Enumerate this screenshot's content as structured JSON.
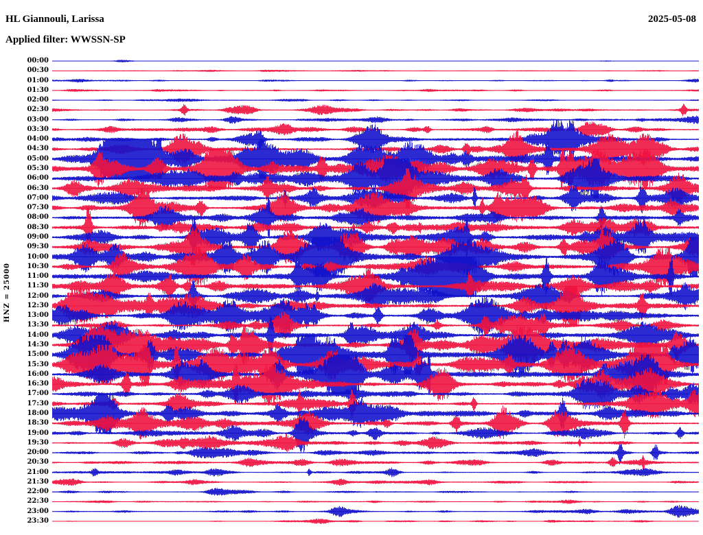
{
  "header": {
    "station": "HL Giannouli, Larissa",
    "date": "2025-05-08",
    "filter": "Applied filter: WWSSN-SP"
  },
  "axis": {
    "scale_label": "HNZ = 25000"
  },
  "chart_data": {
    "type": "line",
    "subtype": "helicorder-seismogram",
    "title": "HL Giannouli, Larissa",
    "date": "2025-05-08",
    "filter": "WWSSN-SP",
    "channel": "HNZ",
    "gain_scale": 25000,
    "ylabel": "HNZ = 25000",
    "minutes_per_row": 30,
    "rows_total": 48,
    "x_axis": "time within each 30-minute line (00 to 30 min)",
    "legend": "none",
    "grid": "off",
    "colors": {
      "blue": "#1212cc",
      "red": "#f01440"
    },
    "rows": [
      {
        "t": "00:00",
        "color": "blue",
        "activity": 0.03
      },
      {
        "t": "00:30",
        "color": "red",
        "activity": 0.12
      },
      {
        "t": "01:00",
        "color": "blue",
        "activity": 0.16
      },
      {
        "t": "01:30",
        "color": "red",
        "activity": 0.22
      },
      {
        "t": "02:00",
        "color": "blue",
        "activity": 0.18
      },
      {
        "t": "02:30",
        "color": "red",
        "activity": 0.3
      },
      {
        "t": "03:00",
        "color": "blue",
        "activity": 0.28
      },
      {
        "t": "03:30",
        "color": "red",
        "activity": 0.45
      },
      {
        "t": "04:00",
        "color": "blue",
        "activity": 0.55
      },
      {
        "t": "04:30",
        "color": "red",
        "activity": 0.6
      },
      {
        "t": "05:00",
        "color": "blue",
        "activity": 0.85
      },
      {
        "t": "05:30",
        "color": "red",
        "activity": 0.9
      },
      {
        "t": "06:00",
        "color": "blue",
        "activity": 0.75
      },
      {
        "t": "06:30",
        "color": "red",
        "activity": 0.65
      },
      {
        "t": "07:00",
        "color": "blue",
        "activity": 0.6
      },
      {
        "t": "07:30",
        "color": "red",
        "activity": 0.7
      },
      {
        "t": "08:00",
        "color": "blue",
        "activity": 0.6
      },
      {
        "t": "08:30",
        "color": "red",
        "activity": 0.65
      },
      {
        "t": "09:00",
        "color": "blue",
        "activity": 0.7
      },
      {
        "t": "09:30",
        "color": "red",
        "activity": 0.7
      },
      {
        "t": "10:00",
        "color": "blue",
        "activity": 0.8
      },
      {
        "t": "10:30",
        "color": "red",
        "activity": 0.75
      },
      {
        "t": "11:00",
        "color": "blue",
        "activity": 0.8
      },
      {
        "t": "11:30",
        "color": "red",
        "activity": 0.7
      },
      {
        "t": "12:00",
        "color": "blue",
        "activity": 0.7
      },
      {
        "t": "12:30",
        "color": "red",
        "activity": 0.72
      },
      {
        "t": "13:00",
        "color": "blue",
        "activity": 0.7
      },
      {
        "t": "13:30",
        "color": "red",
        "activity": 0.62
      },
      {
        "t": "14:00",
        "color": "blue",
        "activity": 0.7
      },
      {
        "t": "14:30",
        "color": "red",
        "activity": 0.8
      },
      {
        "t": "15:00",
        "color": "blue",
        "activity": 0.92
      },
      {
        "t": "15:30",
        "color": "red",
        "activity": 0.9
      },
      {
        "t": "16:00",
        "color": "blue",
        "activity": 0.82
      },
      {
        "t": "16:30",
        "color": "red",
        "activity": 0.7
      },
      {
        "t": "17:00",
        "color": "blue",
        "activity": 0.62
      },
      {
        "t": "17:30",
        "color": "red",
        "activity": 0.6
      },
      {
        "t": "18:00",
        "color": "blue",
        "activity": 0.68
      },
      {
        "t": "18:30",
        "color": "red",
        "activity": 0.6
      },
      {
        "t": "19:00",
        "color": "blue",
        "activity": 0.5
      },
      {
        "t": "19:30",
        "color": "red",
        "activity": 0.4
      },
      {
        "t": "20:00",
        "color": "blue",
        "activity": 0.42
      },
      {
        "t": "20:30",
        "color": "red",
        "activity": 0.38
      },
      {
        "t": "21:00",
        "color": "blue",
        "activity": 0.33
      },
      {
        "t": "21:30",
        "color": "red",
        "activity": 0.28
      },
      {
        "t": "22:00",
        "color": "blue",
        "activity": 0.22
      },
      {
        "t": "22:30",
        "color": "red",
        "activity": 0.22
      },
      {
        "t": "23:00",
        "color": "blue",
        "activity": 0.28
      },
      {
        "t": "23:30",
        "color": "red",
        "activity": 0.18
      }
    ]
  }
}
